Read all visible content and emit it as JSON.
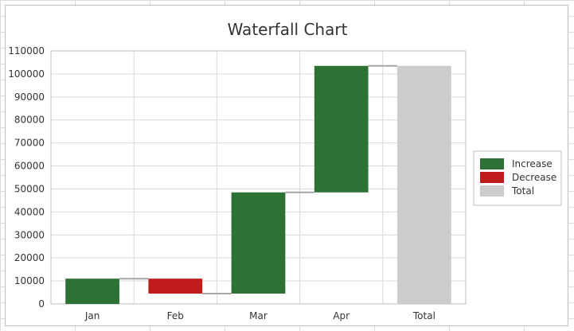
{
  "chart_data": {
    "type": "bar",
    "subtype": "waterfall",
    "title": "Waterfall Chart",
    "xlabel": "",
    "ylabel": "",
    "categories": [
      "Jan",
      "Feb",
      "Mar",
      "Apr",
      "Total"
    ],
    "changes": [
      11000,
      -6500,
      44000,
      55000,
      103500
    ],
    "kinds": [
      "Increase",
      "Decrease",
      "Increase",
      "Increase",
      "Total"
    ],
    "ylim": [
      0,
      110000
    ],
    "yticks": [
      0,
      10000,
      20000,
      30000,
      40000,
      50000,
      60000,
      70000,
      80000,
      90000,
      100000,
      110000
    ],
    "grid": true,
    "legend": {
      "position": "right",
      "entries": [
        "Increase",
        "Decrease",
        "Total"
      ]
    },
    "colors": {
      "Increase": "#2e7134",
      "Decrease": "#c11c1c",
      "Total": "#cccccc",
      "connector": "#a6a6a6",
      "gridline": "#d9d9d9"
    }
  }
}
